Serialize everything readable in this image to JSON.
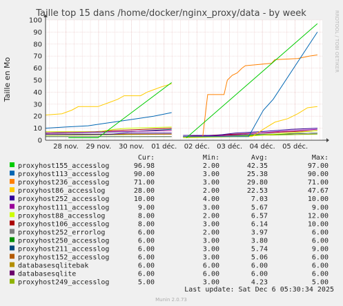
{
  "chart_data": {
    "type": "line",
    "title": "Taille top 15 dans /home/docker/nginx_proxy/data - by week",
    "ylabel": "Taille en Mo",
    "ylim": [
      0,
      100
    ],
    "yticks": [
      0,
      10,
      20,
      30,
      40,
      50,
      60,
      70,
      80,
      90,
      100
    ],
    "x_range_days": [
      0,
      8.45
    ],
    "x_ticks": [
      {
        "label": "28 nov.",
        "day": 0.62
      },
      {
        "label": "29 nov.",
        "day": 1.62
      },
      {
        "label": "30 nov.",
        "day": 2.62
      },
      {
        "label": "01 déc.",
        "day": 3.62
      },
      {
        "label": "02 déc.",
        "day": 4.62
      },
      {
        "label": "03 déc.",
        "day": 5.62
      },
      {
        "label": "04 déc.",
        "day": 6.62
      },
      {
        "label": "05 déc.",
        "day": 7.62
      }
    ],
    "gaps": [
      [
        3.85,
        4.2
      ]
    ],
    "grid": true,
    "legend_columns": [
      "Cur:",
      "Min:",
      "Avg:",
      "Max:"
    ],
    "series": [
      {
        "name": "proxyhost155_accesslog",
        "color": "#00cc00",
        "cur": "96.98",
        "min": "2.00",
        "avg": "42.35",
        "max": "97.00",
        "points": [
          [
            0.7,
            2
          ],
          [
            1.6,
            2
          ],
          [
            3.85,
            48
          ],
          [
            4.3,
            2
          ],
          [
            8.3,
            97
          ]
        ]
      },
      {
        "name": "proxyhost113_accesslog",
        "color": "#0066b3",
        "cur": "90.00",
        "min": "3.00",
        "avg": "25.38",
        "max": "90.00",
        "points": [
          [
            0,
            10
          ],
          [
            0.6,
            11
          ],
          [
            1.3,
            12
          ],
          [
            1.8,
            14
          ],
          [
            2.3,
            16
          ],
          [
            2.8,
            18
          ],
          [
            3.3,
            20
          ],
          [
            3.85,
            23
          ],
          [
            4.2,
            3
          ],
          [
            6.2,
            3
          ],
          [
            6.65,
            25
          ],
          [
            6.95,
            34
          ],
          [
            8.3,
            90
          ]
        ]
      },
      {
        "name": "proxyhost236_accesslog",
        "color": "#ff8000",
        "cur": "71.00",
        "min": "3.00",
        "avg": "29.80",
        "max": "71.00",
        "points": [
          [
            4.2,
            3
          ],
          [
            4.8,
            3
          ],
          [
            4.95,
            38
          ],
          [
            5.45,
            38
          ],
          [
            5.55,
            50
          ],
          [
            5.7,
            54
          ],
          [
            5.85,
            56
          ],
          [
            6.0,
            60
          ],
          [
            6.1,
            62
          ],
          [
            6.5,
            63
          ],
          [
            6.9,
            64
          ],
          [
            7.0,
            67
          ],
          [
            7.7,
            68
          ],
          [
            8.05,
            70
          ],
          [
            8.3,
            71
          ]
        ]
      },
      {
        "name": "proxyhost86_accesslog",
        "color": "#ffcc00",
        "cur": "28.00",
        "min": "2.00",
        "avg": "22.53",
        "max": "47.67",
        "points": [
          [
            0,
            21
          ],
          [
            0.5,
            22
          ],
          [
            0.8,
            25
          ],
          [
            1.0,
            28
          ],
          [
            1.6,
            28
          ],
          [
            1.9,
            31
          ],
          [
            2.2,
            34
          ],
          [
            2.4,
            37
          ],
          [
            2.9,
            37
          ],
          [
            3.1,
            40
          ],
          [
            3.3,
            42
          ],
          [
            3.5,
            44
          ],
          [
            3.85,
            47
          ],
          [
            4.2,
            3
          ],
          [
            6.3,
            3
          ],
          [
            6.7,
            10
          ],
          [
            7.0,
            15
          ],
          [
            7.4,
            18
          ],
          [
            7.7,
            22
          ],
          [
            8.0,
            27
          ],
          [
            8.3,
            28
          ]
        ]
      },
      {
        "name": "proxyhost252_accesslog",
        "color": "#330099",
        "cur": "10.00",
        "min": "4.00",
        "avg": "7.03",
        "max": "10.00",
        "points": [
          [
            0,
            5
          ],
          [
            2.0,
            5
          ],
          [
            2.5,
            6
          ],
          [
            3.85,
            6
          ],
          [
            4.2,
            4
          ],
          [
            5.2,
            4
          ],
          [
            5.8,
            6
          ],
          [
            6.5,
            7
          ],
          [
            7.5,
            9
          ],
          [
            8.3,
            10
          ]
        ]
      },
      {
        "name": "proxyhost111_accesslog",
        "color": "#990099",
        "cur": "9.00",
        "min": "3.00",
        "avg": "5.67",
        "max": "9.00",
        "points": [
          [
            0,
            6
          ],
          [
            3.85,
            8
          ],
          [
            4.2,
            3
          ],
          [
            5.5,
            4
          ],
          [
            6.5,
            6
          ],
          [
            7.5,
            8
          ],
          [
            8.3,
            9
          ]
        ]
      },
      {
        "name": "proxyhost88_accesslog",
        "color": "#ccff00",
        "cur": "8.00",
        "min": "2.00",
        "avg": "6.57",
        "max": "12.00",
        "points": [
          [
            0,
            7
          ],
          [
            1.6,
            7
          ],
          [
            2.1,
            9
          ],
          [
            2.5,
            10
          ],
          [
            3.85,
            11
          ],
          [
            4.2,
            2
          ],
          [
            6.0,
            3
          ],
          [
            7.0,
            5
          ],
          [
            8.3,
            8
          ]
        ]
      },
      {
        "name": "proxyhost106_accesslog",
        "color": "#aa0000",
        "cur": "8.00",
        "min": "3.00",
        "avg": "6.14",
        "max": "10.00",
        "points": [
          [
            0,
            7
          ],
          [
            1.5,
            7
          ],
          [
            2.0,
            8
          ],
          [
            3.85,
            10
          ],
          [
            4.2,
            3
          ],
          [
            6.5,
            6
          ],
          [
            8.3,
            8
          ]
        ]
      },
      {
        "name": "proxyhost252_errorlog",
        "color": "#808080",
        "cur": "6.00",
        "min": "2.00",
        "avg": "3.97",
        "max": "6.00",
        "points": [
          [
            0,
            3
          ],
          [
            3.85,
            3
          ],
          [
            4.2,
            2
          ],
          [
            6.5,
            5
          ],
          [
            8.3,
            6
          ]
        ]
      },
      {
        "name": "proxyhost250_accesslog",
        "color": "#008f00",
        "cur": "6.00",
        "min": "3.00",
        "avg": "3.80",
        "max": "6.00",
        "points": [
          [
            0,
            3
          ],
          [
            3.85,
            3
          ],
          [
            4.2,
            3
          ],
          [
            6.0,
            4
          ],
          [
            8.3,
            6
          ]
        ]
      },
      {
        "name": "proxyhost211_accesslog",
        "color": "#00487d",
        "cur": "6.00",
        "min": "3.00",
        "avg": "5.74",
        "max": "9.00",
        "points": [
          [
            0,
            6
          ],
          [
            2.5,
            7
          ],
          [
            3.85,
            9
          ],
          [
            4.2,
            3
          ],
          [
            7.0,
            5
          ],
          [
            8.3,
            6
          ]
        ]
      },
      {
        "name": "proxyhost152_accesslog",
        "color": "#b35a00",
        "cur": "6.00",
        "min": "3.00",
        "avg": "5.06",
        "max": "6.00",
        "points": [
          [
            0,
            5
          ],
          [
            3.85,
            5
          ],
          [
            4.2,
            3
          ],
          [
            7.0,
            5
          ],
          [
            8.3,
            6
          ]
        ]
      },
      {
        "name": "databasesqlitebak",
        "color": "#b38f00",
        "cur": "6.00",
        "min": "6.00",
        "avg": "6.00",
        "max": "6.00",
        "points": [
          [
            0,
            6
          ],
          [
            8.3,
            6
          ]
        ]
      },
      {
        "name": "databasesqlite",
        "color": "#6b006b",
        "cur": "6.00",
        "min": "6.00",
        "avg": "6.00",
        "max": "6.00",
        "points": [
          [
            0,
            6.2
          ],
          [
            8.3,
            6.2
          ]
        ]
      },
      {
        "name": "proxyhost249_accesslog",
        "color": "#8fb300",
        "cur": "5.00",
        "min": "3.00",
        "avg": "4.23",
        "max": "5.00",
        "points": [
          [
            0,
            4
          ],
          [
            3.85,
            5
          ],
          [
            4.2,
            3
          ],
          [
            8.3,
            5
          ]
        ]
      }
    ],
    "last_update": "Last update: Sat Dec  6 05:30:34 2025"
  },
  "watermark": "RRDTOOL / TOBI OETIKER",
  "footer": "Munin 2.0.73"
}
